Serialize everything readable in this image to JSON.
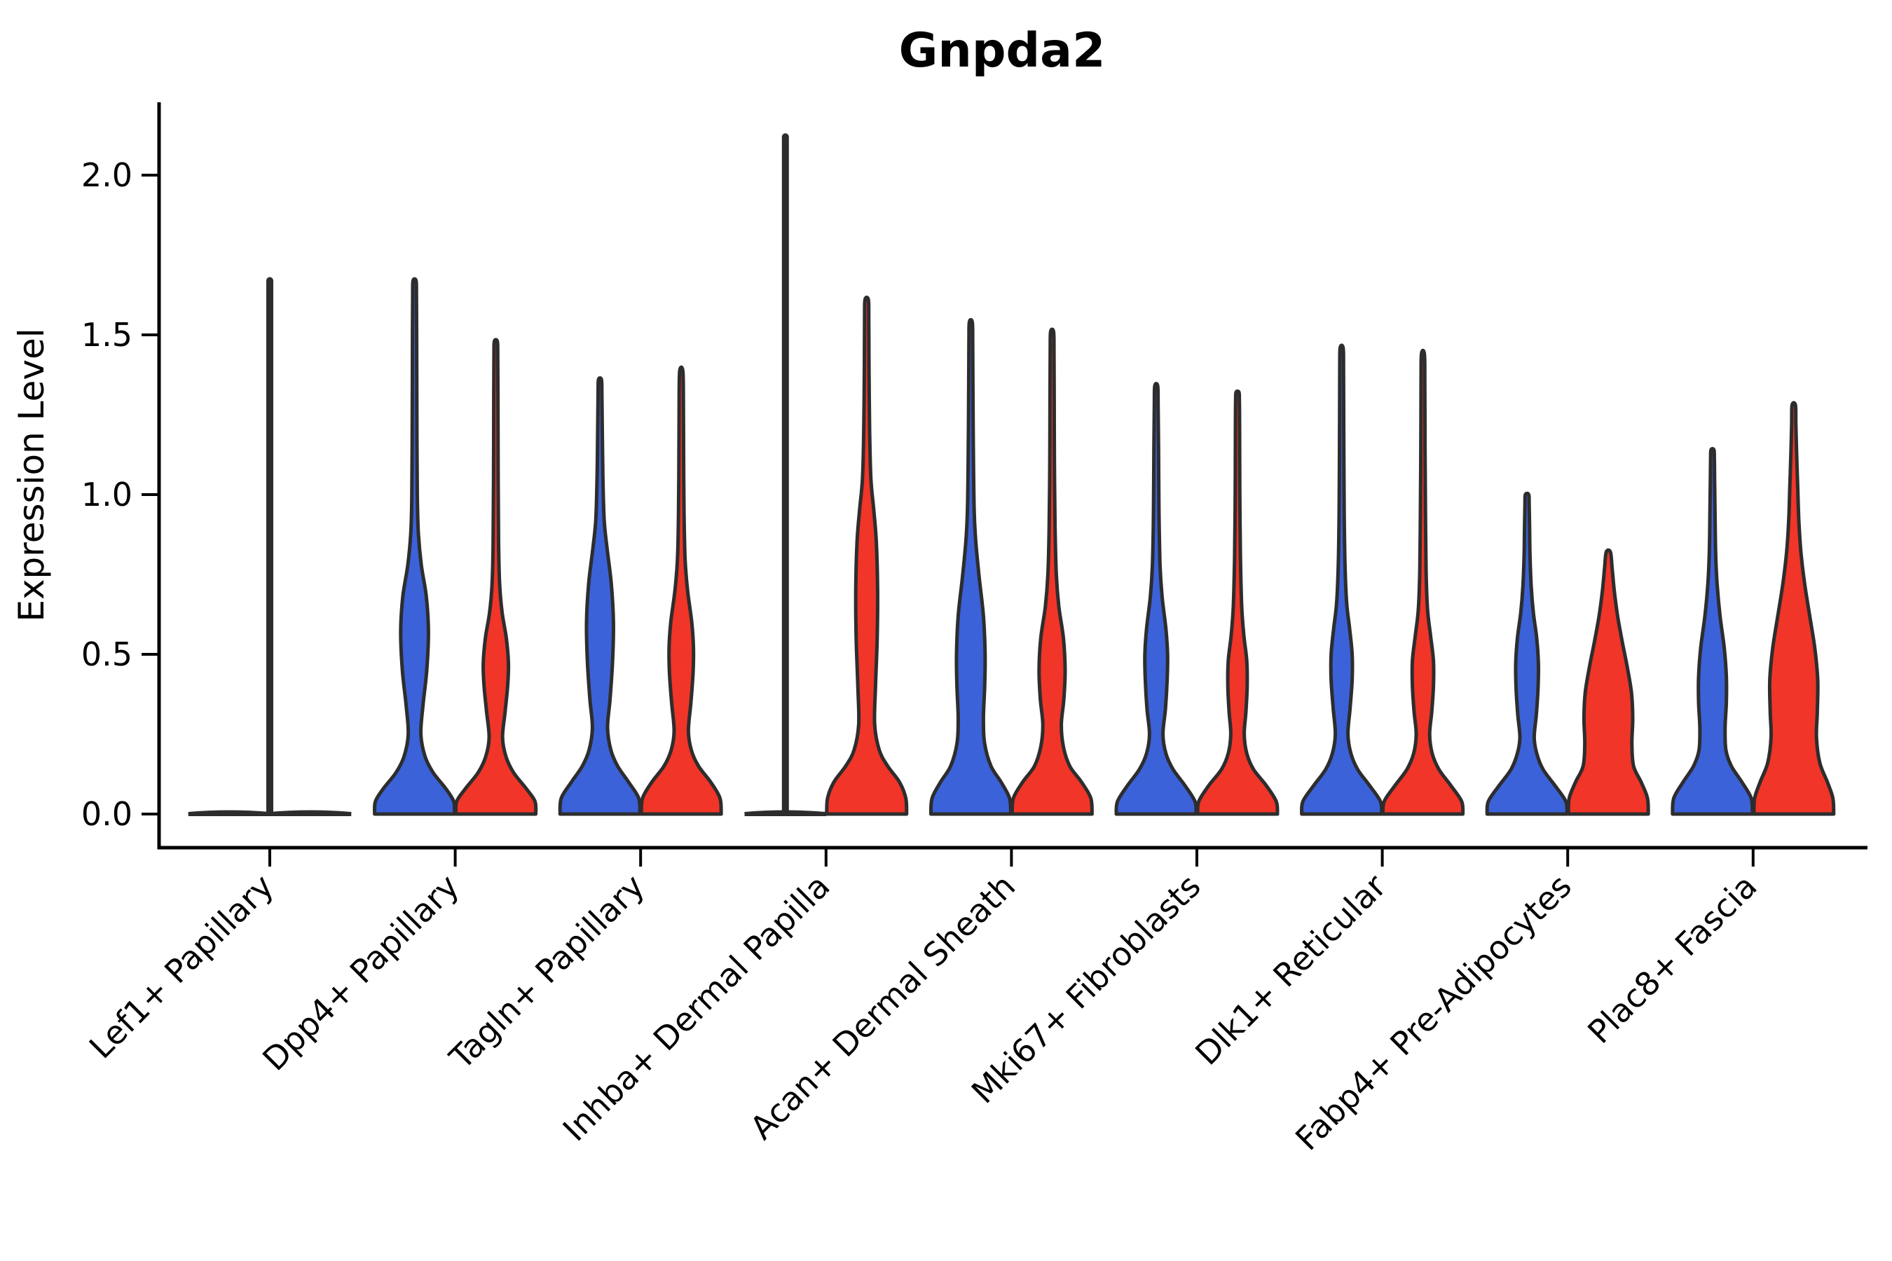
{
  "chart_data": {
    "type": "violin",
    "title": "Gnpda2",
    "ylabel": "Expression Level",
    "xlabel": "",
    "yticks": [
      "0.0",
      "0.5",
      "1.0",
      "1.5",
      "2.0"
    ],
    "ytick_values": [
      0.0,
      0.5,
      1.0,
      1.5,
      2.0
    ],
    "ylim": [
      -0.105,
      2.23
    ],
    "grid": false,
    "legend": "none",
    "x_tick_rotation_deg": 45,
    "colors": {
      "blue": "#3B62D9",
      "red": "#F13528",
      "outline": "#2D2D2D",
      "axis": "#000000"
    },
    "categories": [
      "Lef1+ Papillary",
      "Dpp4+ Papillary",
      "Tagln+ Papillary",
      "Inhba+ Dermal Papilla",
      "Acan+ Dermal Sheath",
      "Mki67+ Fibroblasts",
      "Dlk1+ Reticular",
      "Fabp4+ Pre-Adipocytes",
      "Plac8+ Fascia"
    ],
    "series_keys": [
      "blue",
      "red"
    ],
    "violins": [
      {
        "category": "Lef1+ Papillary",
        "blue": {
          "flat": true,
          "halfspan": 0.97,
          "max": 1.67,
          "spike": {
            "value": 1.67,
            "dx": 58
          }
        },
        "red": {
          "flat": true,
          "halfspan": 0.97,
          "max": 0.0
        }
      },
      {
        "category": "Dpp4+ Papillary",
        "blue": {
          "max": 1.67,
          "profile": [
            [
              0,
              0.95
            ],
            [
              0.04,
              0.93
            ],
            [
              0.08,
              0.74
            ],
            [
              0.13,
              0.44
            ],
            [
              0.18,
              0.25
            ],
            [
              0.25,
              0.15
            ],
            [
              0.34,
              0.2
            ],
            [
              0.45,
              0.29
            ],
            [
              0.57,
              0.33
            ],
            [
              0.68,
              0.28
            ],
            [
              0.78,
              0.16
            ],
            [
              0.88,
              0.09
            ],
            [
              1.0,
              0.065
            ],
            [
              1.25,
              0.055
            ],
            [
              1.5,
              0.05
            ],
            [
              1.63,
              0.045
            ],
            [
              1.67,
              0.035
            ]
          ]
        },
        "red": {
          "max": 1.48,
          "profile": [
            [
              0,
              0.95
            ],
            [
              0.04,
              0.93
            ],
            [
              0.08,
              0.72
            ],
            [
              0.13,
              0.42
            ],
            [
              0.18,
              0.24
            ],
            [
              0.24,
              0.16
            ],
            [
              0.32,
              0.22
            ],
            [
              0.4,
              0.28
            ],
            [
              0.47,
              0.3
            ],
            [
              0.55,
              0.25
            ],
            [
              0.63,
              0.15
            ],
            [
              0.72,
              0.09
            ],
            [
              0.85,
              0.065
            ],
            [
              1.05,
              0.055
            ],
            [
              1.3,
              0.05
            ],
            [
              1.44,
              0.045
            ],
            [
              1.48,
              0.035
            ]
          ]
        }
      },
      {
        "category": "Tagln+ Papillary",
        "blue": {
          "max": 1.36,
          "profile": [
            [
              0,
              0.95
            ],
            [
              0.05,
              0.92
            ],
            [
              0.1,
              0.68
            ],
            [
              0.15,
              0.42
            ],
            [
              0.2,
              0.26
            ],
            [
              0.27,
              0.18
            ],
            [
              0.36,
              0.24
            ],
            [
              0.48,
              0.3
            ],
            [
              0.6,
              0.32
            ],
            [
              0.72,
              0.27
            ],
            [
              0.83,
              0.17
            ],
            [
              0.92,
              0.1
            ],
            [
              1.05,
              0.07
            ],
            [
              1.2,
              0.055
            ],
            [
              1.32,
              0.045
            ],
            [
              1.36,
              0.035
            ]
          ]
        },
        "red": {
          "max": 1.39,
          "profile": [
            [
              0,
              0.95
            ],
            [
              0.05,
              0.92
            ],
            [
              0.1,
              0.7
            ],
            [
              0.15,
              0.41
            ],
            [
              0.2,
              0.24
            ],
            [
              0.26,
              0.17
            ],
            [
              0.35,
              0.23
            ],
            [
              0.44,
              0.28
            ],
            [
              0.52,
              0.29
            ],
            [
              0.6,
              0.25
            ],
            [
              0.7,
              0.15
            ],
            [
              0.8,
              0.09
            ],
            [
              0.95,
              0.065
            ],
            [
              1.15,
              0.055
            ],
            [
              1.32,
              0.05
            ],
            [
              1.39,
              0.035
            ]
          ]
        }
      },
      {
        "category": "Inhba+ Dermal Papilla",
        "blue": {
          "flat": true,
          "halfspan": 0.97,
          "max": 2.12,
          "spike": {
            "value": 2.12,
            "dx": 0
          }
        },
        "red": {
          "max": 1.61,
          "profile": [
            [
              0,
              0.95
            ],
            [
              0.05,
              0.93
            ],
            [
              0.1,
              0.78
            ],
            [
              0.15,
              0.5
            ],
            [
              0.2,
              0.3
            ],
            [
              0.28,
              0.19
            ],
            [
              0.4,
              0.21
            ],
            [
              0.55,
              0.25
            ],
            [
              0.7,
              0.26
            ],
            [
              0.85,
              0.23
            ],
            [
              0.95,
              0.17
            ],
            [
              1.05,
              0.1
            ],
            [
              1.2,
              0.07
            ],
            [
              1.4,
              0.055
            ],
            [
              1.55,
              0.05
            ],
            [
              1.61,
              0.04
            ]
          ]
        }
      },
      {
        "category": "Acan+ Dermal Sheath",
        "blue": {
          "max": 1.54,
          "profile": [
            [
              0,
              0.95
            ],
            [
              0.05,
              0.92
            ],
            [
              0.1,
              0.72
            ],
            [
              0.15,
              0.48
            ],
            [
              0.22,
              0.33
            ],
            [
              0.3,
              0.3
            ],
            [
              0.4,
              0.33
            ],
            [
              0.5,
              0.34
            ],
            [
              0.62,
              0.3
            ],
            [
              0.74,
              0.2
            ],
            [
              0.85,
              0.12
            ],
            [
              0.95,
              0.08
            ],
            [
              1.15,
              0.06
            ],
            [
              1.35,
              0.05
            ],
            [
              1.48,
              0.045
            ],
            [
              1.54,
              0.035
            ]
          ]
        },
        "red": {
          "max": 1.51,
          "profile": [
            [
              0,
              0.95
            ],
            [
              0.05,
              0.92
            ],
            [
              0.1,
              0.7
            ],
            [
              0.15,
              0.42
            ],
            [
              0.21,
              0.27
            ],
            [
              0.28,
              0.22
            ],
            [
              0.36,
              0.28
            ],
            [
              0.45,
              0.31
            ],
            [
              0.55,
              0.27
            ],
            [
              0.65,
              0.16
            ],
            [
              0.75,
              0.1
            ],
            [
              0.9,
              0.07
            ],
            [
              1.1,
              0.055
            ],
            [
              1.3,
              0.05
            ],
            [
              1.45,
              0.045
            ],
            [
              1.51,
              0.035
            ]
          ]
        }
      },
      {
        "category": "Mki67+ Fibroblasts",
        "blue": {
          "max": 1.34,
          "profile": [
            [
              0,
              0.95
            ],
            [
              0.04,
              0.92
            ],
            [
              0.09,
              0.68
            ],
            [
              0.14,
              0.4
            ],
            [
              0.19,
              0.23
            ],
            [
              0.25,
              0.16
            ],
            [
              0.33,
              0.22
            ],
            [
              0.42,
              0.26
            ],
            [
              0.5,
              0.27
            ],
            [
              0.58,
              0.23
            ],
            [
              0.68,
              0.14
            ],
            [
              0.78,
              0.09
            ],
            [
              0.95,
              0.065
            ],
            [
              1.15,
              0.055
            ],
            [
              1.28,
              0.045
            ],
            [
              1.34,
              0.035
            ]
          ]
        },
        "red": {
          "max": 1.32,
          "profile": [
            [
              0,
              0.95
            ],
            [
              0.04,
              0.92
            ],
            [
              0.09,
              0.68
            ],
            [
              0.14,
              0.38
            ],
            [
              0.19,
              0.22
            ],
            [
              0.25,
              0.16
            ],
            [
              0.32,
              0.2
            ],
            [
              0.4,
              0.23
            ],
            [
              0.48,
              0.22
            ],
            [
              0.56,
              0.15
            ],
            [
              0.65,
              0.1
            ],
            [
              0.8,
              0.07
            ],
            [
              1.0,
              0.055
            ],
            [
              1.2,
              0.05
            ],
            [
              1.29,
              0.045
            ],
            [
              1.32,
              0.035
            ]
          ]
        }
      },
      {
        "category": "Dlk1+ Reticular",
        "blue": {
          "max": 1.46,
          "profile": [
            [
              0,
              0.95
            ],
            [
              0.04,
              0.92
            ],
            [
              0.09,
              0.66
            ],
            [
              0.14,
              0.38
            ],
            [
              0.19,
              0.22
            ],
            [
              0.25,
              0.15
            ],
            [
              0.33,
              0.2
            ],
            [
              0.42,
              0.25
            ],
            [
              0.5,
              0.25
            ],
            [
              0.58,
              0.19
            ],
            [
              0.66,
              0.12
            ],
            [
              0.78,
              0.08
            ],
            [
              0.95,
              0.06
            ],
            [
              1.2,
              0.05
            ],
            [
              1.4,
              0.045
            ],
            [
              1.46,
              0.035
            ]
          ]
        },
        "red": {
          "max": 1.44,
          "profile": [
            [
              0,
              0.95
            ],
            [
              0.04,
              0.92
            ],
            [
              0.09,
              0.66
            ],
            [
              0.14,
              0.38
            ],
            [
              0.19,
              0.22
            ],
            [
              0.25,
              0.16
            ],
            [
              0.32,
              0.21
            ],
            [
              0.4,
              0.25
            ],
            [
              0.48,
              0.25
            ],
            [
              0.56,
              0.18
            ],
            [
              0.64,
              0.11
            ],
            [
              0.76,
              0.075
            ],
            [
              0.95,
              0.06
            ],
            [
              1.15,
              0.05
            ],
            [
              1.35,
              0.045
            ],
            [
              1.44,
              0.035
            ]
          ]
        }
      },
      {
        "category": "Fabp4+ Pre-Adipocytes",
        "blue": {
          "max": 1.0,
          "profile": [
            [
              0,
              0.95
            ],
            [
              0.04,
              0.92
            ],
            [
              0.09,
              0.66
            ],
            [
              0.14,
              0.38
            ],
            [
              0.19,
              0.23
            ],
            [
              0.24,
              0.17
            ],
            [
              0.31,
              0.22
            ],
            [
              0.39,
              0.26
            ],
            [
              0.47,
              0.27
            ],
            [
              0.55,
              0.23
            ],
            [
              0.63,
              0.15
            ],
            [
              0.71,
              0.1
            ],
            [
              0.81,
              0.07
            ],
            [
              0.9,
              0.06
            ],
            [
              0.97,
              0.05
            ],
            [
              1.0,
              0.04
            ]
          ]
        },
        "red": {
          "max": 0.82,
          "profile": [
            [
              0,
              0.95
            ],
            [
              0.05,
              0.93
            ],
            [
              0.1,
              0.78
            ],
            [
              0.15,
              0.6
            ],
            [
              0.22,
              0.56
            ],
            [
              0.3,
              0.58
            ],
            [
              0.38,
              0.55
            ],
            [
              0.46,
              0.45
            ],
            [
              0.54,
              0.33
            ],
            [
              0.62,
              0.22
            ],
            [
              0.7,
              0.14
            ],
            [
              0.77,
              0.09
            ],
            [
              0.82,
              0.05
            ]
          ]
        }
      },
      {
        "category": "Plac8+ Fascia",
        "blue": {
          "max": 1.14,
          "profile": [
            [
              0,
              0.95
            ],
            [
              0.05,
              0.92
            ],
            [
              0.1,
              0.7
            ],
            [
              0.15,
              0.45
            ],
            [
              0.2,
              0.32
            ],
            [
              0.27,
              0.3
            ],
            [
              0.35,
              0.33
            ],
            [
              0.43,
              0.33
            ],
            [
              0.52,
              0.28
            ],
            [
              0.62,
              0.18
            ],
            [
              0.72,
              0.11
            ],
            [
              0.82,
              0.075
            ],
            [
              0.95,
              0.06
            ],
            [
              1.05,
              0.05
            ],
            [
              1.11,
              0.045
            ],
            [
              1.14,
              0.035
            ]
          ]
        },
        "red": {
          "max": 1.28,
          "profile": [
            [
              0,
              0.95
            ],
            [
              0.05,
              0.93
            ],
            [
              0.1,
              0.8
            ],
            [
              0.16,
              0.62
            ],
            [
              0.24,
              0.54
            ],
            [
              0.32,
              0.56
            ],
            [
              0.42,
              0.57
            ],
            [
              0.52,
              0.5
            ],
            [
              0.62,
              0.38
            ],
            [
              0.72,
              0.26
            ],
            [
              0.82,
              0.17
            ],
            [
              0.92,
              0.12
            ],
            [
              1.02,
              0.095
            ],
            [
              1.12,
              0.07
            ],
            [
              1.22,
              0.05
            ],
            [
              1.28,
              0.04
            ]
          ]
        }
      }
    ]
  }
}
